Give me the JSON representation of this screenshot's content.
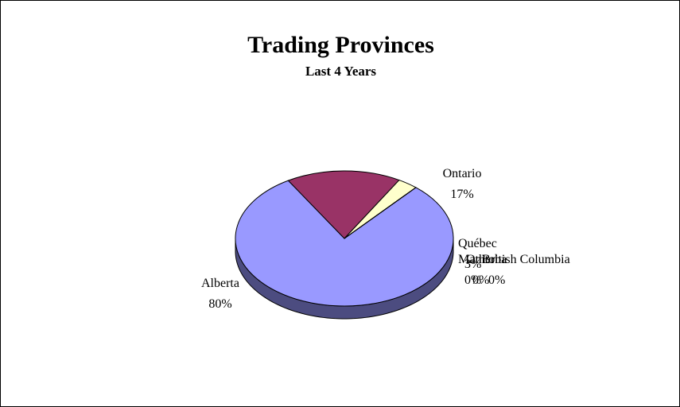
{
  "chart_data": {
    "type": "pie",
    "title": "Trading Provinces",
    "subtitle": "Last 4 Years",
    "categories": [
      "Alberta",
      "Ontario",
      "Québec",
      "Manitoba",
      "Other",
      "British Columbia"
    ],
    "values": [
      80,
      17,
      3,
      0,
      0,
      0
    ],
    "percent_labels": [
      "80%",
      "17%",
      "3%",
      "0%",
      "0%",
      "0%"
    ],
    "colors": [
      "#9999ff",
      "#993366",
      "#ffffcc",
      "#ccffff",
      "#660066",
      "#ff8080"
    ],
    "side_colors": [
      "#4c4c80",
      "#4d1a33",
      "#808066",
      "#668080",
      "#330033",
      "#804040"
    ],
    "legend": "none",
    "view": "3d-tilted"
  }
}
